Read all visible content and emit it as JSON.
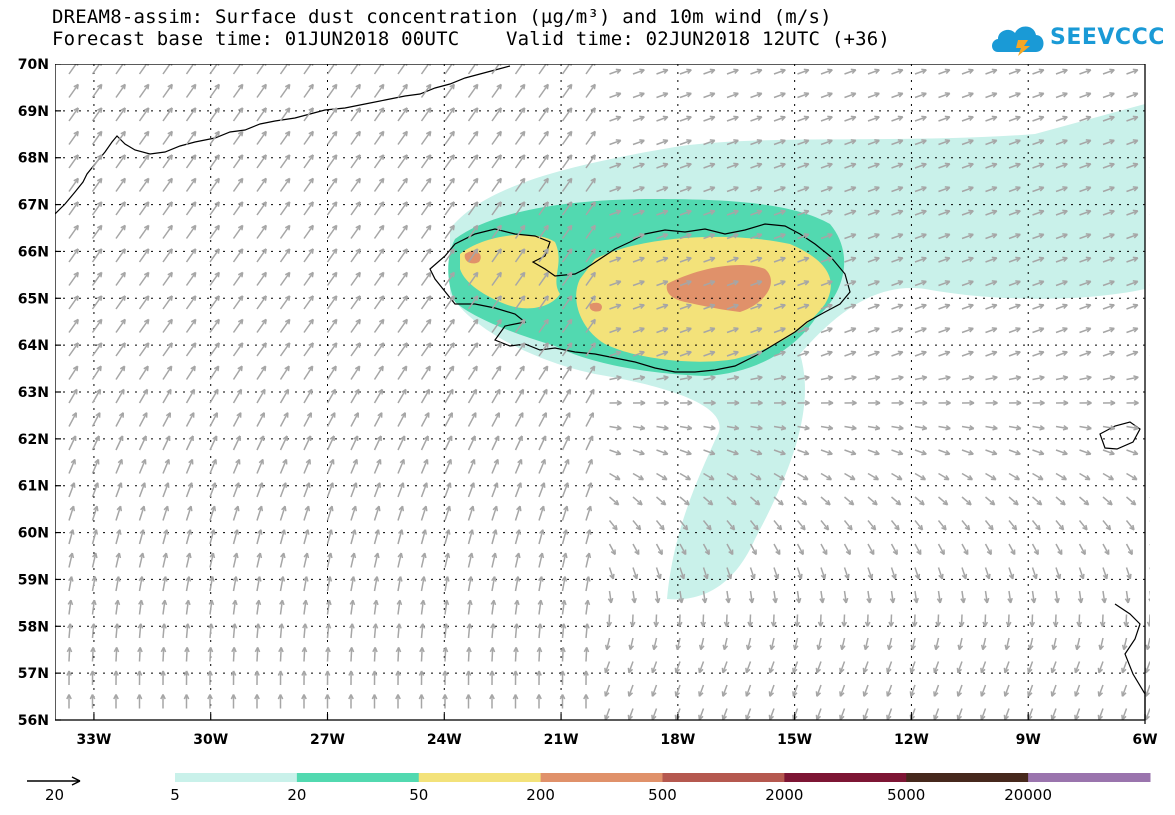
{
  "title": {
    "line1": "DREAM8-assim: Surface dust concentration (µg/m³) and 10m wind (m/s)",
    "line2_left": "Forecast base time: 01JUN2018 00UTC",
    "line2_right": "Valid time: 02JUN2018 12UTC (+36)"
  },
  "logo": {
    "text": "SEEVCCC",
    "color": "#1a9ad6"
  },
  "axes": {
    "lat_labels": [
      "70N",
      "69N",
      "68N",
      "67N",
      "66N",
      "65N",
      "64N",
      "63N",
      "62N",
      "61N",
      "60N",
      "59N",
      "58N",
      "57N",
      "56N"
    ],
    "lon_labels": [
      "33W",
      "30W",
      "27W",
      "24W",
      "21W",
      "18W",
      "15W",
      "12W",
      "9W",
      "6W"
    ],
    "lon_range": [
      -34.0,
      -6.0
    ],
    "lat_range": [
      56.0,
      70.0
    ]
  },
  "legend": {
    "wind_ref_value": "20",
    "levels": [
      "5",
      "20",
      "50",
      "200",
      "500",
      "2000",
      "5000",
      "20000"
    ],
    "colors": [
      "#c9f1ea",
      "#52d9b0",
      "#f3e27a",
      "#e0916a",
      "#b5584f",
      "#7d1534",
      "#46281c",
      "#9a74ad"
    ]
  },
  "wind": {
    "color": "#a6a6a6"
  }
}
